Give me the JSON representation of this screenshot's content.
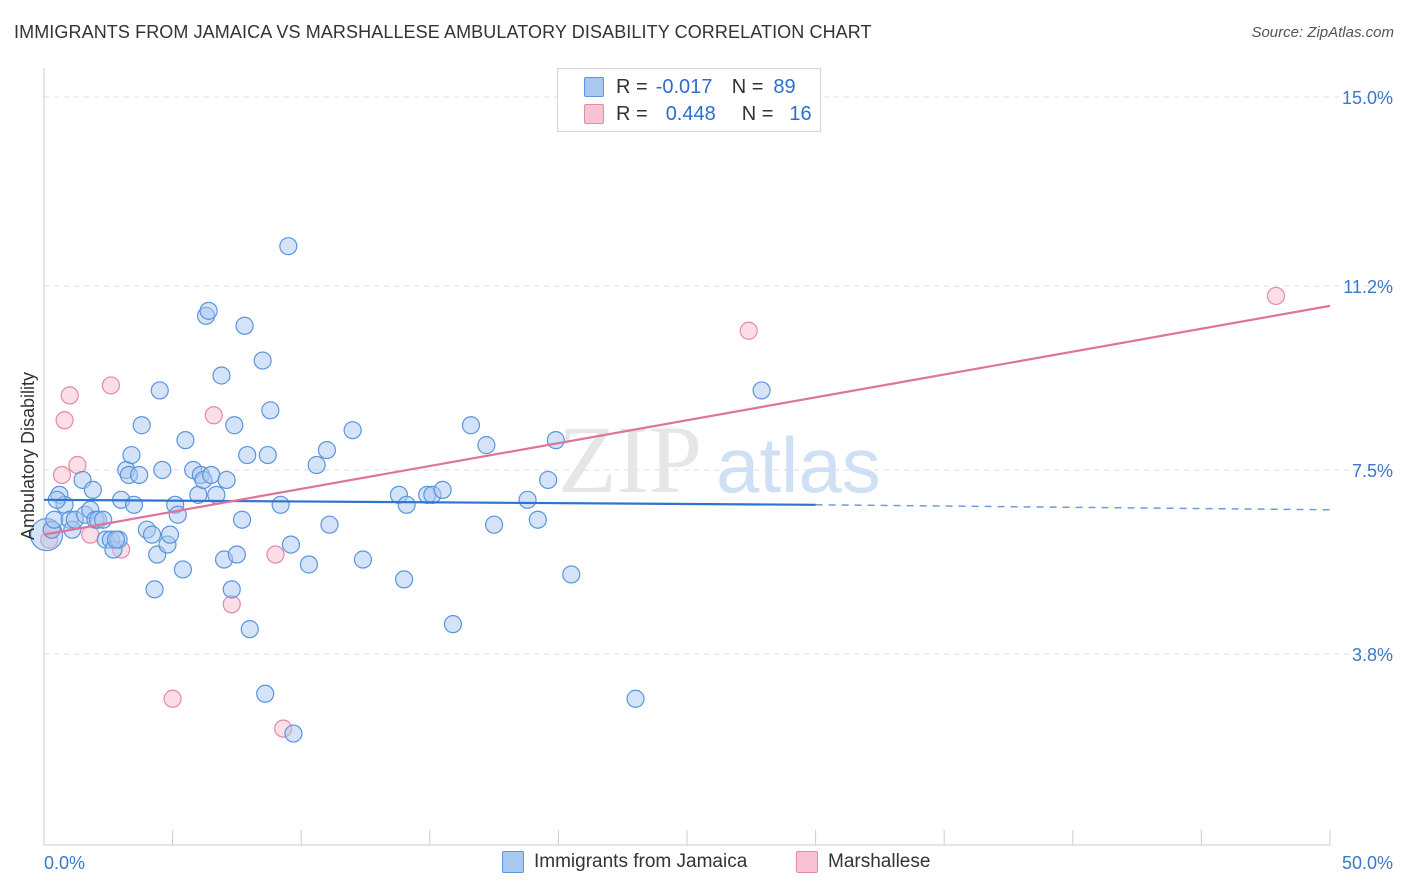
{
  "title": "IMMIGRANTS FROM JAMAICA VS MARSHALLESE AMBULATORY DISABILITY CORRELATION CHART",
  "source": "Source: ZipAtlas.com",
  "watermark": {
    "left": "ZIP",
    "right": "atlas"
  },
  "legend": {
    "rows": [
      {
        "r_label": "R =",
        "r_value": "-0.017",
        "n_label": "N =",
        "n_value": "89"
      },
      {
        "r_label": "R =",
        "r_value": "0.448",
        "n_label": "N =",
        "n_value": "16"
      }
    ]
  },
  "bottom_legend": {
    "series1": "Immigrants from Jamaica",
    "series2": "Marshallese"
  },
  "colors": {
    "blue_fill": "#a9c8f0",
    "blue_stroke": "#5a95dd",
    "blue_line": "#2f72d0",
    "pink_fill": "#f8c2d2",
    "pink_stroke": "#e38aa8",
    "pink_line": "#e0739a",
    "tick_text": "#3a78c9",
    "grid": "#dddddd"
  },
  "chart_data": {
    "type": "scatter",
    "title": "IMMIGRANTS FROM JAMAICA VS MARSHALLESE AMBULATORY DISABILITY CORRELATION CHART",
    "ylabel": "Ambulatory Disability",
    "xlabel": "",
    "xlim": [
      0,
      50
    ],
    "ylim": [
      0,
      16
    ],
    "x_tick_labels": {
      "min": "0.0%",
      "max": "50.0%"
    },
    "y_ticks": [
      {
        "value": 15.0,
        "label": "15.0%"
      },
      {
        "value": 11.2,
        "label": "11.2%"
      },
      {
        "value": 7.5,
        "label": "7.5%"
      },
      {
        "value": 3.8,
        "label": "3.8%"
      }
    ],
    "series": [
      {
        "name": "Immigrants from Jamaica",
        "r": -0.017,
        "n": 89,
        "trend": {
          "x0": 0,
          "y0": 6.9,
          "x1": 30,
          "y1": 6.8,
          "dash_to_x": 50,
          "dash_to_y": 6.7
        },
        "points": [
          [
            0.1,
            6.2
          ],
          [
            0.3,
            6.3
          ],
          [
            0.4,
            6.5
          ],
          [
            0.6,
            7.0
          ],
          [
            0.8,
            6.8
          ],
          [
            1.0,
            6.5
          ],
          [
            1.1,
            6.3
          ],
          [
            1.2,
            6.5
          ],
          [
            1.5,
            7.3
          ],
          [
            1.6,
            6.6
          ],
          [
            1.8,
            6.7
          ],
          [
            1.9,
            7.1
          ],
          [
            2.0,
            6.5
          ],
          [
            2.1,
            6.5
          ],
          [
            2.3,
            6.5
          ],
          [
            2.4,
            6.1
          ],
          [
            2.6,
            6.1
          ],
          [
            2.7,
            5.9
          ],
          [
            2.9,
            6.1
          ],
          [
            3.0,
            6.9
          ],
          [
            3.2,
            7.5
          ],
          [
            3.3,
            7.4
          ],
          [
            3.4,
            7.8
          ],
          [
            3.5,
            6.8
          ],
          [
            3.7,
            7.4
          ],
          [
            3.8,
            8.4
          ],
          [
            4.0,
            6.3
          ],
          [
            4.2,
            6.2
          ],
          [
            4.3,
            5.1
          ],
          [
            4.4,
            5.8
          ],
          [
            4.5,
            9.1
          ],
          [
            4.6,
            7.5
          ],
          [
            4.8,
            6.0
          ],
          [
            4.9,
            6.2
          ],
          [
            5.1,
            6.8
          ],
          [
            5.2,
            6.6
          ],
          [
            5.4,
            5.5
          ],
          [
            5.5,
            8.1
          ],
          [
            5.8,
            7.5
          ],
          [
            6.0,
            7.0
          ],
          [
            6.1,
            7.4
          ],
          [
            6.2,
            7.3
          ],
          [
            6.3,
            10.6
          ],
          [
            6.4,
            10.7
          ],
          [
            6.5,
            7.4
          ],
          [
            6.7,
            7.0
          ],
          [
            6.9,
            9.4
          ],
          [
            7.0,
            5.7
          ],
          [
            7.1,
            7.3
          ],
          [
            7.3,
            5.1
          ],
          [
            7.4,
            8.4
          ],
          [
            7.5,
            5.8
          ],
          [
            7.7,
            6.5
          ],
          [
            7.8,
            10.4
          ],
          [
            7.9,
            7.8
          ],
          [
            8.0,
            4.3
          ],
          [
            8.5,
            9.7
          ],
          [
            8.6,
            3.0
          ],
          [
            8.7,
            7.8
          ],
          [
            8.8,
            8.7
          ],
          [
            9.2,
            6.8
          ],
          [
            9.5,
            12.0
          ],
          [
            9.6,
            6.0
          ],
          [
            9.7,
            2.2
          ],
          [
            10.3,
            5.6
          ],
          [
            10.6,
            7.6
          ],
          [
            11.0,
            7.9
          ],
          [
            11.1,
            6.4
          ],
          [
            12.0,
            8.3
          ],
          [
            12.4,
            5.7
          ],
          [
            13.8,
            7.0
          ],
          [
            14.0,
            5.3
          ],
          [
            14.1,
            6.8
          ],
          [
            14.9,
            7.0
          ],
          [
            15.1,
            7.0
          ],
          [
            15.5,
            7.1
          ],
          [
            15.9,
            4.4
          ],
          [
            16.6,
            8.4
          ],
          [
            17.2,
            8.0
          ],
          [
            17.5,
            6.4
          ],
          [
            18.8,
            6.9
          ],
          [
            19.2,
            6.5
          ],
          [
            19.6,
            7.3
          ],
          [
            19.9,
            8.1
          ],
          [
            20.5,
            5.4
          ],
          [
            23.0,
            2.9
          ],
          [
            27.9,
            9.1
          ],
          [
            0.5,
            6.9
          ],
          [
            2.8,
            6.1
          ]
        ]
      },
      {
        "name": "Marshallese",
        "r": 0.448,
        "n": 16,
        "trend": {
          "x0": 0,
          "y0": 6.2,
          "x1": 50,
          "y1": 10.8
        },
        "points": [
          [
            0.2,
            6.1
          ],
          [
            0.3,
            6.3
          ],
          [
            0.7,
            7.4
          ],
          [
            0.8,
            8.5
          ],
          [
            1.0,
            9.0
          ],
          [
            1.3,
            7.6
          ],
          [
            1.8,
            6.2
          ],
          [
            2.6,
            9.2
          ],
          [
            3.0,
            5.9
          ],
          [
            5.0,
            2.9
          ],
          [
            6.6,
            8.6
          ],
          [
            7.3,
            4.8
          ],
          [
            9.0,
            5.8
          ],
          [
            9.3,
            2.3
          ],
          [
            27.4,
            10.3
          ],
          [
            47.9,
            11.0
          ]
        ]
      }
    ]
  }
}
